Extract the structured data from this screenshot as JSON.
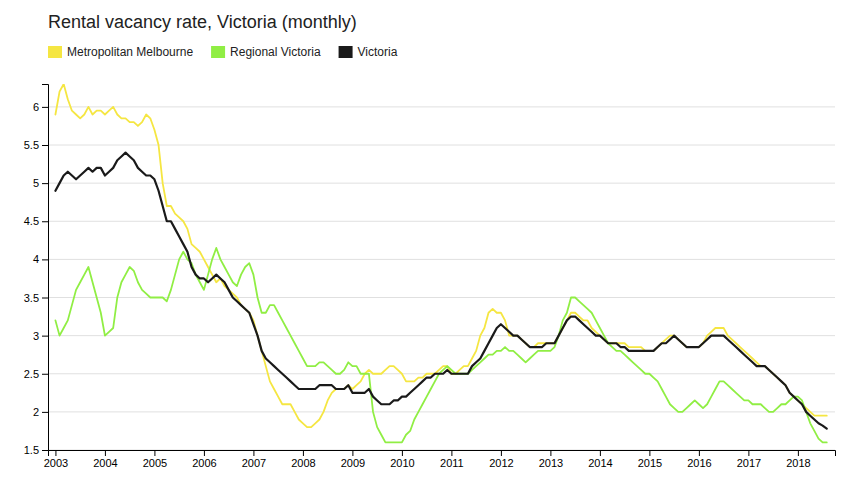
{
  "chart_data": {
    "type": "line",
    "title": "Rental vacancy rate, Victoria (monthly)",
    "x": [
      2003,
      2003.0833333333333,
      2003.1666666666667,
      2003.25,
      2003.3333333333333,
      2003.4166666666667,
      2003.5,
      2003.5833333333333,
      2003.6666666666667,
      2003.75,
      2003.8333333333333,
      2003.9166666666667,
      2004,
      2004.0833333333333,
      2004.1666666666667,
      2004.25,
      2004.3333333333333,
      2004.4166666666667,
      2004.5,
      2004.5833333333333,
      2004.6666666666667,
      2004.75,
      2004.8333333333333,
      2004.9166666666667,
      2005,
      2005.0833333333333,
      2005.1666666666667,
      2005.25,
      2005.3333333333333,
      2005.4166666666667,
      2005.5,
      2005.5833333333333,
      2005.6666666666667,
      2005.75,
      2005.8333333333333,
      2005.9166666666667,
      2006,
      2006.0833333333333,
      2006.1666666666667,
      2006.25,
      2006.3333333333333,
      2006.4166666666667,
      2006.5,
      2006.5833333333333,
      2006.6666666666667,
      2006.75,
      2006.8333333333333,
      2006.9166666666667,
      2007,
      2007.0833333333333,
      2007.1666666666667,
      2007.25,
      2007.3333333333333,
      2007.4166666666667,
      2007.5,
      2007.5833333333333,
      2007.6666666666667,
      2007.75,
      2007.8333333333333,
      2007.9166666666667,
      2008,
      2008.0833333333333,
      2008.1666666666667,
      2008.25,
      2008.3333333333333,
      2008.4166666666667,
      2008.5,
      2008.5833333333333,
      2008.6666666666667,
      2008.75,
      2008.8333333333333,
      2008.9166666666667,
      2009,
      2009.0833333333333,
      2009.1666666666667,
      2009.25,
      2009.3333333333333,
      2009.4166666666667,
      2009.5,
      2009.5833333333333,
      2009.6666666666667,
      2009.75,
      2009.8333333333333,
      2009.9166666666667,
      2010,
      2010.0833333333333,
      2010.1666666666667,
      2010.25,
      2010.3333333333333,
      2010.4166666666667,
      2010.5,
      2010.5833333333333,
      2010.6666666666667,
      2010.75,
      2010.8333333333333,
      2010.9166666666667,
      2011,
      2011.0833333333333,
      2011.1666666666667,
      2011.25,
      2011.3333333333333,
      2011.4166666666667,
      2011.5,
      2011.5833333333333,
      2011.6666666666667,
      2011.75,
      2011.8333333333333,
      2011.9166666666667,
      2012,
      2012.0833333333333,
      2012.1666666666667,
      2012.25,
      2012.3333333333333,
      2012.4166666666667,
      2012.5,
      2012.5833333333333,
      2012.6666666666667,
      2012.75,
      2012.8333333333333,
      2012.9166666666667,
      2013,
      2013.0833333333333,
      2013.1666666666667,
      2013.25,
      2013.3333333333333,
      2013.4166666666667,
      2013.5,
      2013.5833333333333,
      2013.6666666666667,
      2013.75,
      2013.8333333333333,
      2013.9166666666667,
      2014,
      2014.0833333333333,
      2014.1666666666667,
      2014.25,
      2014.3333333333333,
      2014.4166666666667,
      2014.5,
      2014.5833333333333,
      2014.6666666666667,
      2014.75,
      2014.8333333333333,
      2014.9166666666667,
      2015,
      2015.0833333333333,
      2015.1666666666667,
      2015.25,
      2015.3333333333333,
      2015.4166666666667,
      2015.5,
      2015.5833333333333,
      2015.6666666666667,
      2015.75,
      2015.8333333333333,
      2015.9166666666667,
      2016,
      2016.0833333333333,
      2016.1666666666667,
      2016.25,
      2016.3333333333333,
      2016.4166666666667,
      2016.5,
      2016.5833333333333,
      2016.6666666666667,
      2016.75,
      2016.8333333333333,
      2016.9166666666667,
      2017,
      2017.0833333333333,
      2017.1666666666667,
      2017.25,
      2017.3333333333333,
      2017.4166666666667,
      2017.5,
      2017.5833333333333,
      2017.6666666666667,
      2017.75,
      2017.8333333333333,
      2017.9166666666667,
      2018,
      2018.0833333333333,
      2018.1666666666667,
      2018.25,
      2018.3333333333333,
      2018.4166666666667,
      2018.5,
      2018.5833333333333
    ],
    "series": [
      {
        "name": "Metropolitan Melbourne",
        "color": "#f5e642",
        "values": [
          5.9,
          6.2,
          6.3,
          6.1,
          5.95,
          5.9,
          5.85,
          5.9,
          6.0,
          5.9,
          5.95,
          5.95,
          5.9,
          5.95,
          6.0,
          5.9,
          5.85,
          5.85,
          5.8,
          5.8,
          5.75,
          5.8,
          5.9,
          5.85,
          5.7,
          5.5,
          5.0,
          4.7,
          4.7,
          4.6,
          4.55,
          4.5,
          4.4,
          4.2,
          4.15,
          4.1,
          4.0,
          3.9,
          3.8,
          3.7,
          3.75,
          3.65,
          3.6,
          3.55,
          3.5,
          3.4,
          3.35,
          3.3,
          3.2,
          3.0,
          2.8,
          2.6,
          2.4,
          2.3,
          2.2,
          2.1,
          2.1,
          2.1,
          2.0,
          1.9,
          1.85,
          1.8,
          1.8,
          1.85,
          1.9,
          2.0,
          2.15,
          2.25,
          2.3,
          2.3,
          2.3,
          2.35,
          2.3,
          2.35,
          2.4,
          2.5,
          2.55,
          2.5,
          2.5,
          2.5,
          2.55,
          2.6,
          2.6,
          2.55,
          2.5,
          2.4,
          2.4,
          2.4,
          2.45,
          2.45,
          2.5,
          2.5,
          2.5,
          2.55,
          2.6,
          2.6,
          2.5,
          2.5,
          2.55,
          2.6,
          2.6,
          2.7,
          2.8,
          3.0,
          3.1,
          3.3,
          3.35,
          3.3,
          3.3,
          3.2,
          3.0,
          3.0,
          3.0,
          2.95,
          2.9,
          2.85,
          2.85,
          2.9,
          2.9,
          2.9,
          2.9,
          2.9,
          3.0,
          3.1,
          3.2,
          3.3,
          3.3,
          3.25,
          3.2,
          3.2,
          3.1,
          3.05,
          3.0,
          2.95,
          2.9,
          2.9,
          2.9,
          2.9,
          2.9,
          2.85,
          2.85,
          2.85,
          2.85,
          2.8,
          2.8,
          2.8,
          2.85,
          2.9,
          2.95,
          3.0,
          3.0,
          2.95,
          2.9,
          2.85,
          2.85,
          2.85,
          2.85,
          2.9,
          3.0,
          3.05,
          3.1,
          3.1,
          3.1,
          3.0,
          2.95,
          2.9,
          2.85,
          2.8,
          2.75,
          2.7,
          2.65,
          2.6,
          2.6,
          2.55,
          2.5,
          2.45,
          2.4,
          2.35,
          2.25,
          2.2,
          2.15,
          2.1,
          2.05,
          2.0,
          1.95,
          1.95,
          1.95,
          1.95
        ]
      },
      {
        "name": "Regional Victoria",
        "color": "#90ee44",
        "values": [
          3.2,
          3.0,
          3.1,
          3.2,
          3.4,
          3.6,
          3.7,
          3.8,
          3.9,
          3.7,
          3.5,
          3.3,
          3.0,
          3.05,
          3.1,
          3.5,
          3.7,
          3.8,
          3.9,
          3.85,
          3.7,
          3.6,
          3.55,
          3.5,
          3.5,
          3.5,
          3.5,
          3.45,
          3.6,
          3.8,
          4.0,
          4.1,
          4.0,
          3.95,
          3.8,
          3.7,
          3.6,
          3.8,
          4.0,
          4.15,
          4.0,
          3.9,
          3.8,
          3.7,
          3.65,
          3.8,
          3.9,
          3.95,
          3.8,
          3.5,
          3.3,
          3.3,
          3.4,
          3.4,
          3.3,
          3.2,
          3.1,
          3.0,
          2.9,
          2.8,
          2.7,
          2.6,
          2.6,
          2.6,
          2.65,
          2.65,
          2.6,
          2.55,
          2.5,
          2.5,
          2.55,
          2.65,
          2.6,
          2.6,
          2.5,
          2.5,
          2.5,
          2.0,
          1.8,
          1.7,
          1.6,
          1.6,
          1.6,
          1.6,
          1.6,
          1.7,
          1.75,
          1.9,
          2.0,
          2.1,
          2.2,
          2.3,
          2.4,
          2.5,
          2.55,
          2.6,
          2.55,
          2.5,
          2.5,
          2.5,
          2.5,
          2.55,
          2.6,
          2.65,
          2.7,
          2.75,
          2.75,
          2.8,
          2.8,
          2.85,
          2.8,
          2.8,
          2.75,
          2.7,
          2.65,
          2.7,
          2.75,
          2.8,
          2.8,
          2.8,
          2.8,
          2.85,
          3.0,
          3.2,
          3.3,
          3.5,
          3.5,
          3.45,
          3.4,
          3.35,
          3.3,
          3.2,
          3.1,
          3.0,
          2.9,
          2.85,
          2.8,
          2.8,
          2.75,
          2.7,
          2.65,
          2.6,
          2.55,
          2.5,
          2.5,
          2.45,
          2.4,
          2.3,
          2.2,
          2.1,
          2.05,
          2.0,
          2.0,
          2.05,
          2.1,
          2.15,
          2.1,
          2.05,
          2.1,
          2.2,
          2.3,
          2.4,
          2.4,
          2.35,
          2.3,
          2.25,
          2.2,
          2.15,
          2.15,
          2.1,
          2.1,
          2.1,
          2.05,
          2.0,
          2.0,
          2.05,
          2.1,
          2.1,
          2.15,
          2.2,
          2.2,
          2.15,
          2.0,
          1.85,
          1.75,
          1.65,
          1.6,
          1.6
        ]
      },
      {
        "name": "Victoria",
        "color": "#1a1a1a",
        "values": [
          4.9,
          5.0,
          5.1,
          5.15,
          5.1,
          5.05,
          5.1,
          5.15,
          5.2,
          5.15,
          5.2,
          5.2,
          5.1,
          5.15,
          5.2,
          5.3,
          5.35,
          5.4,
          5.35,
          5.3,
          5.2,
          5.15,
          5.1,
          5.1,
          5.05,
          4.9,
          4.7,
          4.5,
          4.5,
          4.4,
          4.3,
          4.2,
          4.1,
          3.9,
          3.8,
          3.75,
          3.75,
          3.7,
          3.75,
          3.8,
          3.75,
          3.7,
          3.6,
          3.5,
          3.45,
          3.4,
          3.35,
          3.3,
          3.15,
          3.0,
          2.8,
          2.7,
          2.65,
          2.6,
          2.55,
          2.5,
          2.45,
          2.4,
          2.35,
          2.3,
          2.3,
          2.3,
          2.3,
          2.3,
          2.35,
          2.35,
          2.35,
          2.35,
          2.3,
          2.3,
          2.3,
          2.35,
          2.25,
          2.25,
          2.25,
          2.25,
          2.3,
          2.2,
          2.15,
          2.1,
          2.1,
          2.1,
          2.15,
          2.15,
          2.2,
          2.2,
          2.25,
          2.3,
          2.35,
          2.4,
          2.45,
          2.45,
          2.5,
          2.5,
          2.5,
          2.55,
          2.5,
          2.5,
          2.5,
          2.5,
          2.5,
          2.6,
          2.65,
          2.7,
          2.8,
          2.9,
          3.0,
          3.1,
          3.15,
          3.1,
          3.05,
          3.0,
          3.0,
          2.95,
          2.9,
          2.85,
          2.85,
          2.85,
          2.85,
          2.9,
          2.9,
          2.9,
          3.0,
          3.1,
          3.2,
          3.25,
          3.25,
          3.2,
          3.15,
          3.1,
          3.05,
          3.0,
          3.0,
          2.95,
          2.9,
          2.9,
          2.9,
          2.85,
          2.85,
          2.8,
          2.8,
          2.8,
          2.8,
          2.8,
          2.8,
          2.8,
          2.85,
          2.9,
          2.9,
          2.95,
          3.0,
          2.95,
          2.9,
          2.85,
          2.85,
          2.85,
          2.85,
          2.9,
          2.95,
          3.0,
          3.0,
          3.0,
          3.0,
          2.95,
          2.9,
          2.85,
          2.8,
          2.75,
          2.7,
          2.65,
          2.6,
          2.6,
          2.6,
          2.55,
          2.5,
          2.45,
          2.4,
          2.35,
          2.25,
          2.2,
          2.15,
          2.1,
          2.0,
          1.95,
          1.9,
          1.85,
          1.82,
          1.78
        ]
      }
    ],
    "xlim": [
      2002.85,
      2018.75
    ],
    "xticks": [
      2003,
      2004,
      2005,
      2006,
      2007,
      2008,
      2009,
      2010,
      2011,
      2012,
      2013,
      2014,
      2015,
      2016,
      2017,
      2018
    ],
    "ylim": [
      1.5,
      6.3
    ],
    "yticks": [
      1.5,
      2,
      2.5,
      3,
      3.5,
      4,
      4.5,
      5,
      5.5,
      6
    ],
    "grid": "y",
    "legend": "top"
  }
}
